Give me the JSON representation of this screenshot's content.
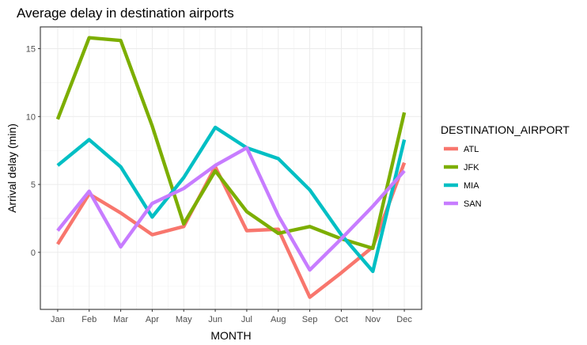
{
  "chart_data": {
    "type": "line",
    "title": "Average delay in destination airports",
    "xlabel": "MONTH",
    "ylabel": "Arrival delay (min)",
    "categories": [
      "Jan",
      "Feb",
      "Mar",
      "Apr",
      "May",
      "Jun",
      "Jul",
      "Aug",
      "Sep",
      "Oct",
      "Nov",
      "Dec"
    ],
    "y_ticks": [
      0,
      5,
      10,
      15
    ],
    "ylim": [
      -4.2,
      16.6
    ],
    "grid": true,
    "legend": {
      "title": "DESTINATION_AIRPORT",
      "placement": "right"
    },
    "series": [
      {
        "name": "ATL",
        "color": "#F8766D",
        "values": [
          0.6,
          4.3,
          2.9,
          1.3,
          1.9,
          6.3,
          1.6,
          1.7,
          -3.3,
          -1.5,
          0.4,
          6.6
        ]
      },
      {
        "name": "JFK",
        "color": "#7CAE00",
        "values": [
          9.8,
          15.8,
          15.6,
          9.3,
          2.1,
          6.0,
          3.0,
          1.4,
          1.9,
          1.0,
          0.3,
          10.3
        ]
      },
      {
        "name": "MIA",
        "color": "#00BFC4",
        "values": [
          6.4,
          8.3,
          6.3,
          2.6,
          5.5,
          9.2,
          7.7,
          6.9,
          4.6,
          1.3,
          -1.4,
          8.3
        ]
      },
      {
        "name": "SAN",
        "color": "#C77CFF",
        "values": [
          1.6,
          4.5,
          0.4,
          3.6,
          4.7,
          6.4,
          7.7,
          2.7,
          -1.3,
          1.0,
          3.4,
          6.0
        ]
      }
    ]
  }
}
